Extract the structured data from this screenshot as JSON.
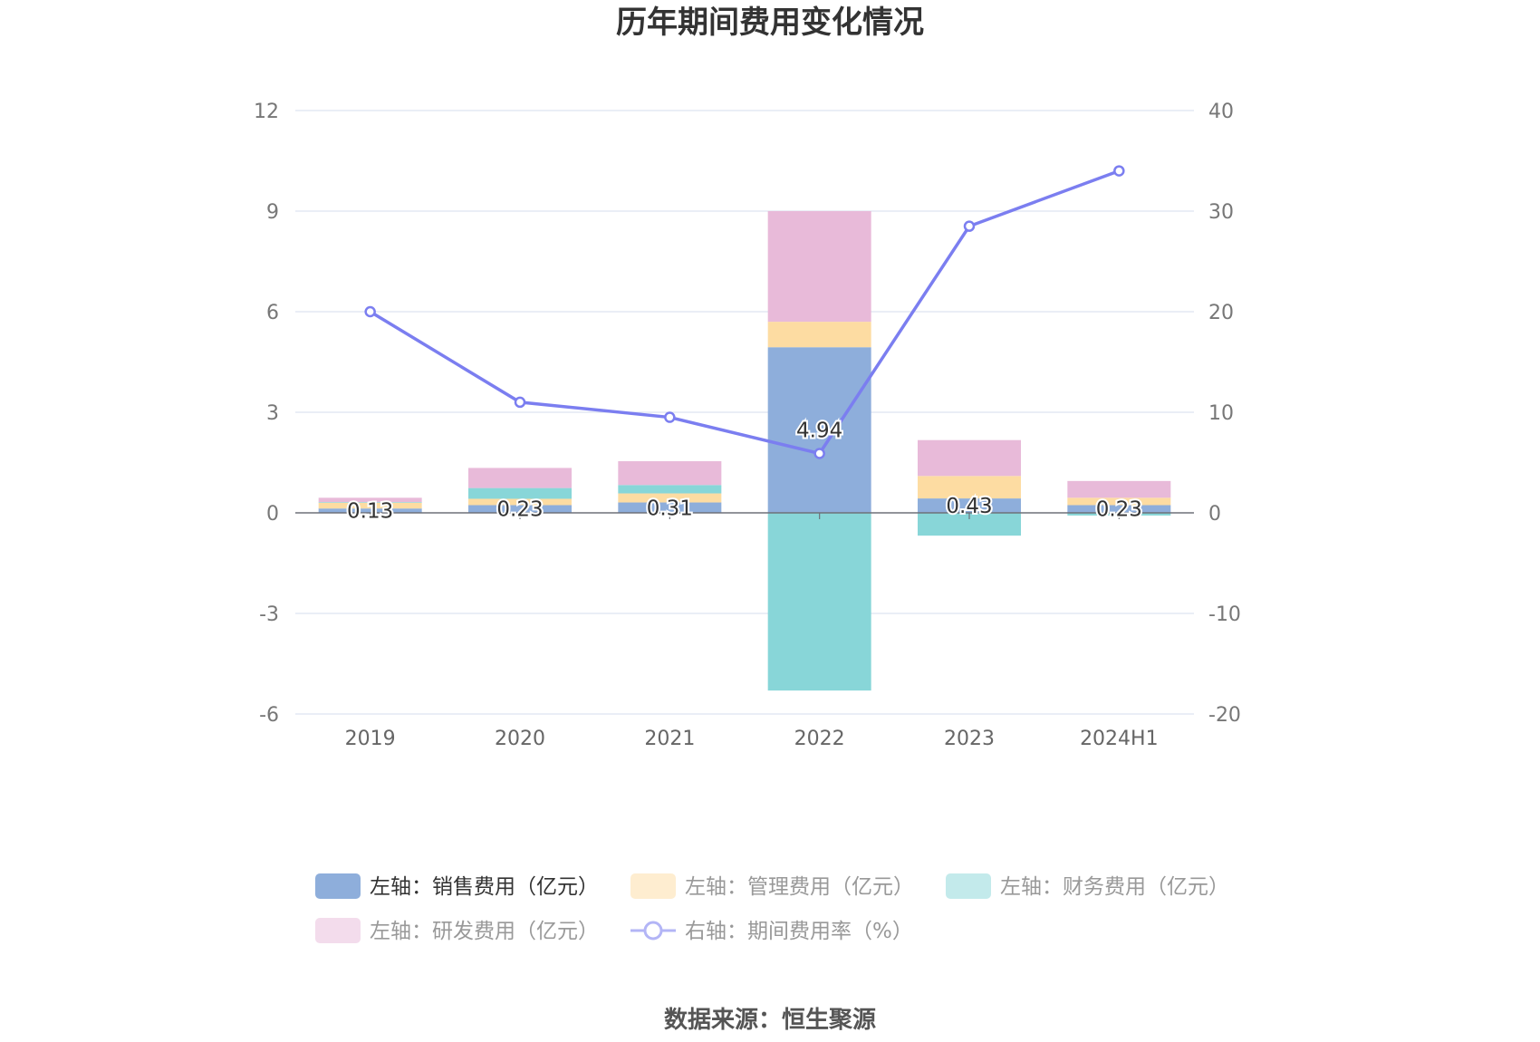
{
  "chart_data": {
    "type": "bar",
    "stacked": true,
    "title": "历年期间费用变化情况",
    "categories": [
      "2019",
      "2020",
      "2021",
      "2022",
      "2023",
      "2024H1"
    ],
    "y_left": {
      "min": -6,
      "max": 12,
      "ticks": [
        "-6",
        "-3",
        "0",
        "3",
        "6",
        "9",
        "12"
      ]
    },
    "y_right": {
      "min": -20,
      "max": 40,
      "ticks": [
        "-20",
        "-10",
        "0",
        "10",
        "20",
        "30",
        "40"
      ]
    },
    "grid": true,
    "series": [
      {
        "name": "左轴：销售费用（亿元）",
        "axis": "left",
        "type": "bar",
        "color": "#8eaedb",
        "values": [
          0.13,
          0.23,
          0.31,
          4.94,
          0.43,
          0.23
        ]
      },
      {
        "name": "左轴：管理费用（亿元）",
        "axis": "left",
        "type": "bar",
        "color": "#fddca2",
        "values": [
          0.17,
          0.19,
          0.27,
          0.76,
          0.67,
          0.22
        ]
      },
      {
        "name": "左轴：财务费用（亿元）",
        "axis": "left",
        "type": "bar",
        "color": "#88d6d8",
        "values": [
          0.02,
          0.32,
          0.25,
          -5.3,
          -0.68,
          -0.08
        ]
      },
      {
        "name": "左轴：研发费用（亿元）",
        "axis": "left",
        "type": "bar",
        "color": "#e8bad9",
        "values": [
          0.13,
          0.6,
          0.71,
          3.3,
          1.07,
          0.5
        ]
      },
      {
        "name": "右轴：期间费用率（%）",
        "axis": "right",
        "type": "line",
        "color": "#7b7ef0",
        "values": [
          20.0,
          11.0,
          9.5,
          5.9,
          28.5,
          34.0
        ]
      }
    ],
    "data_labels": [
      "0.13",
      "0.23",
      "0.31",
      "4.94",
      "0.43",
      "0.23"
    ],
    "legend_position": "bottom"
  },
  "footer": {
    "source": "数据来源：恒生聚源"
  }
}
